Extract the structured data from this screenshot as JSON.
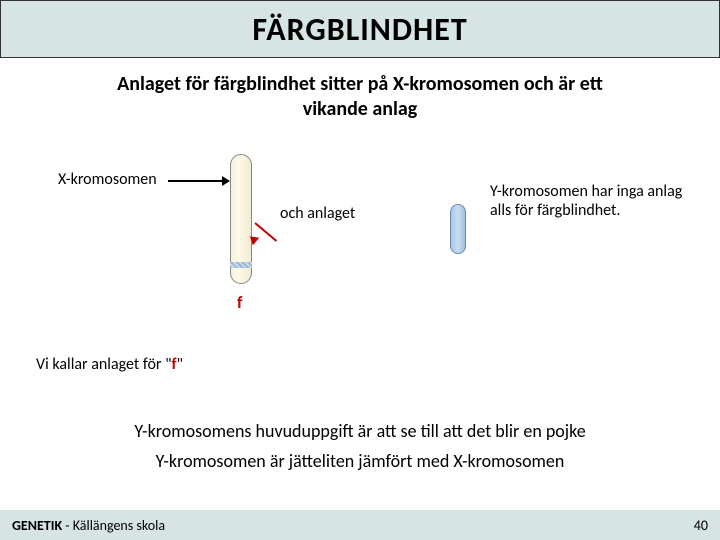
{
  "title": "FÄRGBLINDHET",
  "subtitle_line1": "Anlaget för färgblindhet sitter på X-kromosomen och är ett",
  "subtitle_line2": "vikande anlag",
  "x_label": "X-kromosomen",
  "och_label": "och anlaget",
  "f_marker": "f",
  "y_label": "Y-kromosomen har inga anlag alls för färgblindhet.",
  "vi_text_pre": "Vi kallar anlaget för \"",
  "vi_text_f": "f",
  "vi_text_post": "\"",
  "bottom1": "Y-kromosomens huvuduppgift är att se till att det blir en pojke",
  "bottom2": "Y-kromosomen är jätteliten jämfört med X-kromosomen",
  "footer_bold": "GENETIK",
  "footer_rest": " - Källängens skola",
  "page_num": "40",
  "colors": {
    "title_bg": "#d6e5e3",
    "accent_red": "#c00000",
    "x_fill": "#f5f0d8",
    "y_fill": "#a8c8e8"
  }
}
